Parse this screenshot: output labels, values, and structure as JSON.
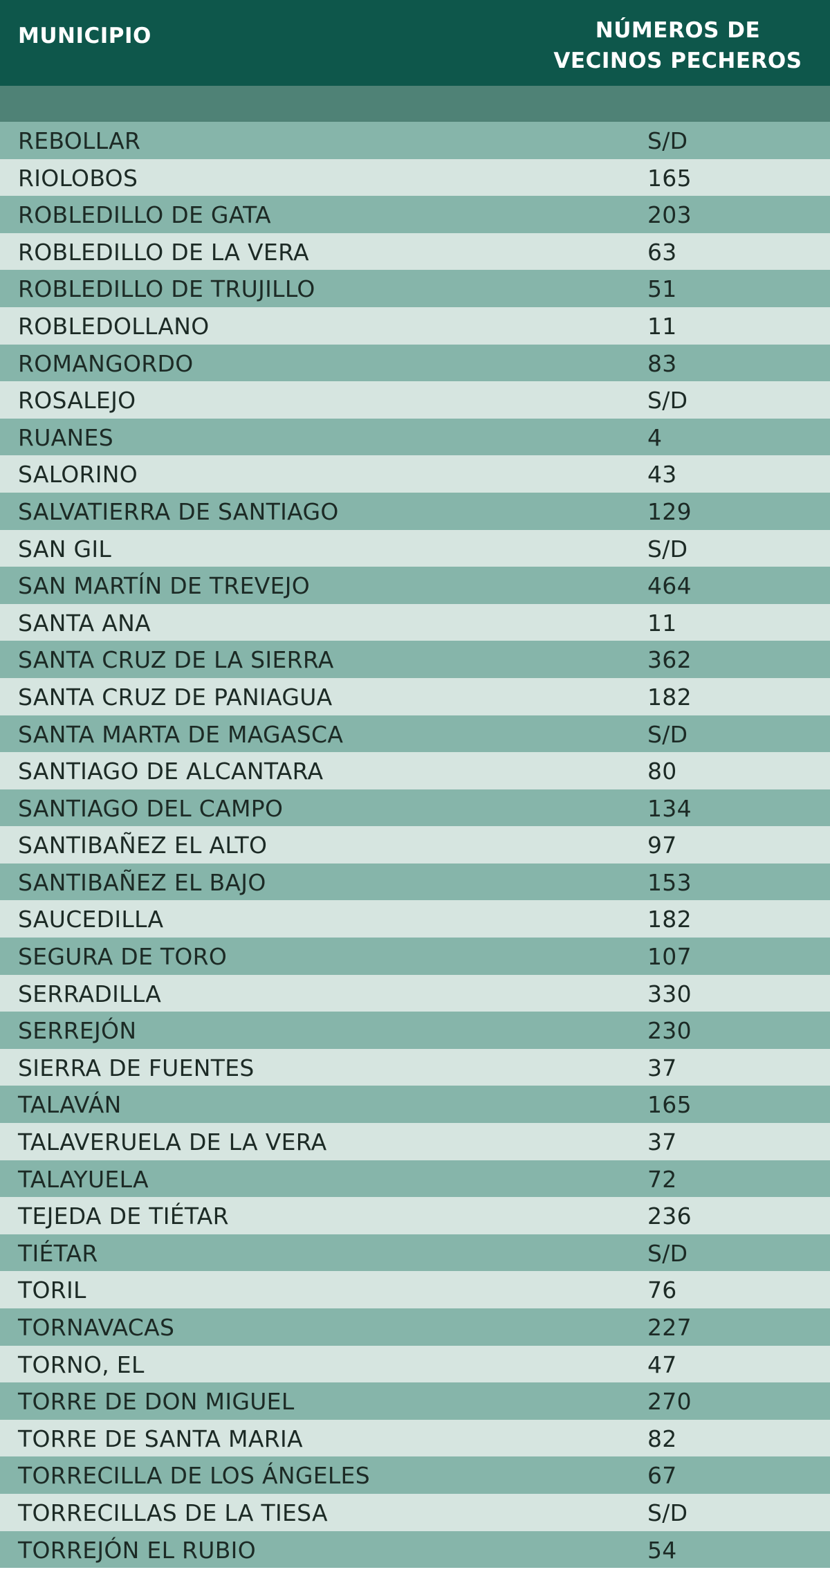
{
  "header": {
    "col_municipio": "MUNICIPIO",
    "col_numeros_line1": "NÚMEROS DE",
    "col_numeros_line2": "VECINOS PECHEROS"
  },
  "rows": [
    {
      "municipio": "REBOLLAR",
      "numero": "S/D"
    },
    {
      "municipio": "RIOLOBOS",
      "numero": "165"
    },
    {
      "municipio": "ROBLEDILLO DE GATA",
      "numero": "203"
    },
    {
      "municipio": "ROBLEDILLO DE LA VERA",
      "numero": "63"
    },
    {
      "municipio": "ROBLEDILLO DE TRUJILLO",
      "numero": "51"
    },
    {
      "municipio": "ROBLEDOLLANO",
      "numero": "11"
    },
    {
      "municipio": "ROMANGORDO",
      "numero": "83"
    },
    {
      "municipio": "ROSALEJO",
      "numero": "S/D"
    },
    {
      "municipio": "RUANES",
      "numero": "4"
    },
    {
      "municipio": "SALORINO",
      "numero": "43"
    },
    {
      "municipio": "SALVATIERRA DE SANTIAGO",
      "numero": "129"
    },
    {
      "municipio": "SAN GIL",
      "numero": "S/D"
    },
    {
      "municipio": "SAN MARTÍN DE TREVEJO",
      "numero": "464"
    },
    {
      "municipio": "SANTA ANA",
      "numero": "11"
    },
    {
      "municipio": "SANTA CRUZ DE LA SIERRA",
      "numero": "362"
    },
    {
      "municipio": "SANTA CRUZ DE PANIAGUA",
      "numero": "182"
    },
    {
      "municipio": "SANTA MARTA DE MAGASCA",
      "numero": "S/D"
    },
    {
      "municipio": "SANTIAGO DE ALCANTARA",
      "numero": "80"
    },
    {
      "municipio": "SANTIAGO DEL CAMPO",
      "numero": "134"
    },
    {
      "municipio": "SANTIBAÑEZ EL ALTO",
      "numero": "97"
    },
    {
      "municipio": "SANTIBAÑEZ EL BAJO",
      "numero": "153"
    },
    {
      "municipio": "SAUCEDILLA",
      "numero": "182"
    },
    {
      "municipio": "SEGURA DE TORO",
      "numero": "107"
    },
    {
      "municipio": "SERRADILLA",
      "numero": "330"
    },
    {
      "municipio": "SERREJÓN",
      "numero": "230"
    },
    {
      "municipio": "SIERRA DE FUENTES",
      "numero": "37"
    },
    {
      "municipio": "TALAVÁN",
      "numero": "165"
    },
    {
      "municipio": "TALAVERUELA DE LA VERA",
      "numero": "37"
    },
    {
      "municipio": "TALAYUELA",
      "numero": "72"
    },
    {
      "municipio": "TEJEDA DE TIÉTAR",
      "numero": "236"
    },
    {
      "municipio": "TIÉTAR",
      "numero": "S/D"
    },
    {
      "municipio": "TORIL",
      "numero": "76"
    },
    {
      "municipio": "TORNAVACAS",
      "numero": "227"
    },
    {
      "municipio": "TORNO, EL",
      "numero": "47"
    },
    {
      "municipio": "TORRE DE DON MIGUEL",
      "numero": "270"
    },
    {
      "municipio": "TORRE DE SANTA MARIA",
      "numero": "82"
    },
    {
      "municipio": "TORRECILLA DE LOS ÁNGELES",
      "numero": "67"
    },
    {
      "municipio": "TORRECILLAS DE LA TIESA",
      "numero": "S/D"
    },
    {
      "municipio": "TORREJÓN EL RUBIO",
      "numero": "54"
    }
  ]
}
